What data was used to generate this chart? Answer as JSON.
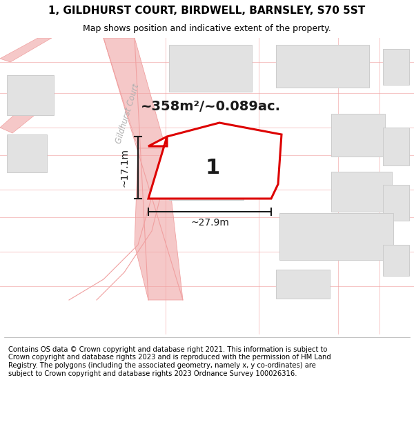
{
  "title_line1": "1, GILDHURST COURT, BIRDWELL, BARNSLEY, S70 5ST",
  "title_line2": "Map shows position and indicative extent of the property.",
  "footer_text": "Contains OS data © Crown copyright and database right 2021. This information is subject to Crown copyright and database rights 2023 and is reproduced with the permission of HM Land Registry. The polygons (including the associated geometry, namely x, y co-ordinates) are subject to Crown copyright and database rights 2023 Ordnance Survey 100026316.",
  "map_bg": "#f5f5f5",
  "road_color": "#f0a0a0",
  "road_color_light": "#f5c8c8",
  "building_color": "#e2e2e2",
  "building_edge": "#cccccc",
  "property_fill": "#ffffff",
  "property_edge": "#dd0000",
  "dim_color": "#1a1a1a",
  "area_text": "~358m²/~0.089ac.",
  "dim_width_text": "~27.9m",
  "dim_height_text": "~17.1m",
  "property_label": "1",
  "road_label": "Gildhurst Court",
  "footer_max_chars": 93
}
